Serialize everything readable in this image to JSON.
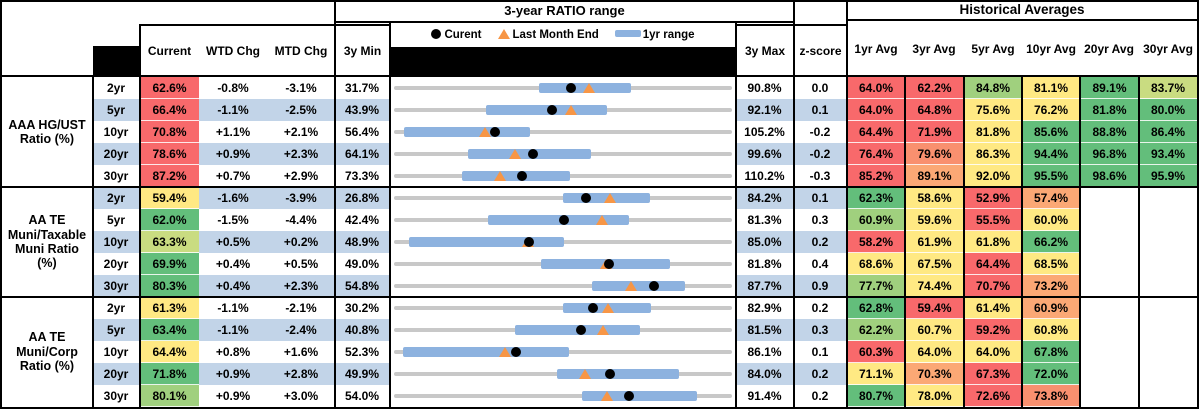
{
  "title_ratio_range": "3-year RATIO range",
  "title_historical": "Historical Averages",
  "columns": {
    "current": "Current",
    "wtd": "WTD Chg",
    "mtd": "MTD Chg",
    "min3y": "3y Min",
    "max3y": "3y Max",
    "zscore": "z-score",
    "averages": [
      "1yr Avg",
      "3yr Avg",
      "5yr Avg",
      "10yr Avg",
      "20yr Avg",
      "30yr Avg"
    ]
  },
  "legend": {
    "current": "Curent",
    "last_month_end": "Last Month End",
    "range_1yr": "1yr range"
  },
  "palette": {
    "red": "#F8696B",
    "redorange": "#F9906F",
    "orange": "#FBA875",
    "yellow": "#FFE983",
    "yellowgreen": "#C9DC81",
    "lightgreen": "#A0D07E",
    "green": "#63BE7B",
    "band_blue": "#C2D4E8",
    "bar_blue": "#8DB2DF",
    "track_gray": "#C8C8C8",
    "marker_orange": "#F79646",
    "marker_black": "#000000"
  },
  "chart_data": {
    "type": "bullet-range table",
    "note": "Each row: gray track = 3y min..max, blue bar = 1yr range, black dot = current, orange triangle = last month end; values in percent",
    "groups": [
      {
        "label": "AAA HG/UST\nRatio (%)",
        "rows": [
          {
            "tenor": "2yr",
            "current": 62.6,
            "current_color": "red",
            "wtd": -0.8,
            "mtd": -3.1,
            "min3y": 31.7,
            "max3y": 90.8,
            "zscore": 0.0,
            "range_1yr": [
              56.9,
              73.4
            ],
            "last_month_end": 65.9,
            "avgs": [
              64.0,
              62.2,
              84.8,
              81.1,
              89.1,
              83.7
            ],
            "avg_colors": [
              "red",
              "red",
              "lightgreen",
              "yellow",
              "green",
              "yellowgreen"
            ]
          },
          {
            "tenor": "5yr",
            "current": 66.4,
            "current_color": "red",
            "wtd": -1.1,
            "mtd": -2.5,
            "min3y": 43.9,
            "max3y": 92.1,
            "zscore": 0.1,
            "range_1yr": [
              56.8,
              74.4
            ],
            "last_month_end": 69.2,
            "avgs": [
              64.0,
              64.8,
              75.6,
              76.2,
              81.8,
              80.0
            ],
            "avg_colors": [
              "red",
              "red",
              "yellow",
              "yellow",
              "green",
              "green"
            ]
          },
          {
            "tenor": "10yr",
            "current": 70.8,
            "current_color": "red",
            "wtd": 1.1,
            "mtd": 2.1,
            "min3y": 56.4,
            "max3y": 105.2,
            "zscore": -0.2,
            "range_1yr": [
              57.4,
              75.9
            ],
            "last_month_end": 69.3,
            "avgs": [
              64.4,
              71.9,
              81.8,
              85.6,
              88.8,
              86.4
            ],
            "avg_colors": [
              "red",
              "red",
              "yellow",
              "green",
              "green",
              "green"
            ]
          },
          {
            "tenor": "20yr",
            "current": 78.6,
            "current_color": "red",
            "wtd": 0.9,
            "mtd": 2.3,
            "min3y": 64.1,
            "max3y": 99.6,
            "zscore": -0.2,
            "range_1yr": [
              71.7,
              84.9
            ],
            "last_month_end": 76.7,
            "avgs": [
              76.4,
              79.6,
              86.3,
              94.4,
              96.8,
              93.4
            ],
            "avg_colors": [
              "red",
              "redorange",
              "yellow",
              "green",
              "green",
              "green"
            ]
          },
          {
            "tenor": "30yr",
            "current": 87.2,
            "current_color": "red",
            "wtd": 0.7,
            "mtd": 2.9,
            "min3y": 73.3,
            "max3y": 110.2,
            "zscore": -0.3,
            "range_1yr": [
              80.5,
              92.5
            ],
            "last_month_end": 84.7,
            "avgs": [
              85.2,
              89.1,
              92.0,
              95.5,
              98.6,
              95.9
            ],
            "avg_colors": [
              "red",
              "orange",
              "yellow",
              "green",
              "green",
              "green"
            ]
          }
        ]
      },
      {
        "label": "AA TE\nMuni/Taxable\nMuni Ratio\n(%)",
        "rows": [
          {
            "tenor": "2yr",
            "current": 59.4,
            "current_color": "yellow",
            "wtd": -1.6,
            "mtd": -3.9,
            "min3y": 26.8,
            "max3y": 84.2,
            "zscore": 0.1,
            "range_1yr": [
              55.5,
              70.5
            ],
            "last_month_end": 63.6,
            "avgs": [
              62.3,
              58.6,
              52.9,
              57.4
            ],
            "avg_colors": [
              "green",
              "yellow",
              "red",
              "orange"
            ]
          },
          {
            "tenor": "5yr",
            "current": 62.0,
            "current_color": "green",
            "wtd": -1.5,
            "mtd": -4.4,
            "min3y": 42.4,
            "max3y": 81.3,
            "zscore": 0.3,
            "range_1yr": [
              53.1,
              69.6
            ],
            "last_month_end": 66.4,
            "avgs": [
              60.9,
              59.6,
              55.5,
              60.0
            ],
            "avg_colors": [
              "lightgreen",
              "yellow",
              "red",
              "yellow"
            ]
          },
          {
            "tenor": "10yr",
            "current": 63.3,
            "current_color": "yellowgreen",
            "wtd": 0.5,
            "mtd": 0.2,
            "min3y": 48.9,
            "max3y": 85.0,
            "zscore": 0.2,
            "range_1yr": [
              50.2,
              67.0
            ],
            "last_month_end": 63.1,
            "avgs": [
              58.2,
              61.9,
              61.8,
              66.2
            ],
            "avg_colors": [
              "red",
              "yellow",
              "yellow",
              "green"
            ]
          },
          {
            "tenor": "20yr",
            "current": 69.9,
            "current_color": "green",
            "wtd": 0.4,
            "mtd": 0.5,
            "min3y": 49.0,
            "max3y": 81.8,
            "zscore": 0.4,
            "range_1yr": [
              63.2,
              76.0
            ],
            "last_month_end": 69.6,
            "avgs": [
              68.6,
              67.5,
              64.4,
              68.5
            ],
            "avg_colors": [
              "yellow",
              "yellow",
              "red",
              "yellow"
            ]
          },
          {
            "tenor": "30yr",
            "current": 80.3,
            "current_color": "green",
            "wtd": 0.4,
            "mtd": 2.3,
            "min3y": 54.8,
            "max3y": 87.7,
            "zscore": 0.9,
            "range_1yr": [
              74.1,
              83.3
            ],
            "last_month_end": 78.0,
            "avgs": [
              77.7,
              74.4,
              70.7,
              73.2
            ],
            "avg_colors": [
              "lightgreen",
              "yellow",
              "red",
              "orange"
            ]
          }
        ]
      },
      {
        "label": "AA TE\nMuni/Corp\nRatio (%)",
        "rows": [
          {
            "tenor": "2yr",
            "current": 61.3,
            "current_color": "yellow",
            "wtd": -1.1,
            "mtd": -2.1,
            "min3y": 30.2,
            "max3y": 82.9,
            "zscore": 0.2,
            "range_1yr": [
              56.6,
              70.5
            ],
            "last_month_end": 63.7,
            "avgs": [
              62.8,
              59.4,
              61.4,
              60.9
            ],
            "avg_colors": [
              "green",
              "red",
              "yellow",
              "orange"
            ]
          },
          {
            "tenor": "5yr",
            "current": 63.4,
            "current_color": "green",
            "wtd": -1.1,
            "mtd": -2.4,
            "min3y": 40.8,
            "max3y": 81.5,
            "zscore": 0.3,
            "range_1yr": [
              55.2,
              70.6
            ],
            "last_month_end": 66.0,
            "avgs": [
              62.2,
              60.7,
              59.2,
              60.8
            ],
            "avg_colors": [
              "lightgreen",
              "yellow",
              "red",
              "yellow"
            ]
          },
          {
            "tenor": "10yr",
            "current": 64.4,
            "current_color": "yellow",
            "wtd": 0.8,
            "mtd": 1.6,
            "min3y": 52.3,
            "max3y": 86.1,
            "zscore": 0.1,
            "range_1yr": [
              52.9,
              69.8
            ],
            "last_month_end": 63.3,
            "avgs": [
              60.3,
              64.0,
              64.0,
              67.8
            ],
            "avg_colors": [
              "red",
              "yellow",
              "yellow",
              "green"
            ]
          },
          {
            "tenor": "20yr",
            "current": 71.8,
            "current_color": "green",
            "wtd": 0.9,
            "mtd": 2.8,
            "min3y": 49.9,
            "max3y": 84.0,
            "zscore": 0.2,
            "range_1yr": [
              66.3,
              78.9
            ],
            "last_month_end": 69.2,
            "avgs": [
              71.1,
              70.3,
              67.3,
              72.0
            ],
            "avg_colors": [
              "yellow",
              "orange",
              "red",
              "green"
            ]
          },
          {
            "tenor": "30yr",
            "current": 80.1,
            "current_color": "lightgreen",
            "wtd": 0.9,
            "mtd": 3.0,
            "min3y": 54.0,
            "max3y": 91.4,
            "zscore": 0.2,
            "range_1yr": [
              74.8,
              87.8
            ],
            "last_month_end": 77.6,
            "avgs": [
              80.7,
              78.0,
              72.6,
              73.8
            ],
            "avg_colors": [
              "green",
              "yellow",
              "red",
              "redorange"
            ]
          }
        ]
      }
    ]
  }
}
